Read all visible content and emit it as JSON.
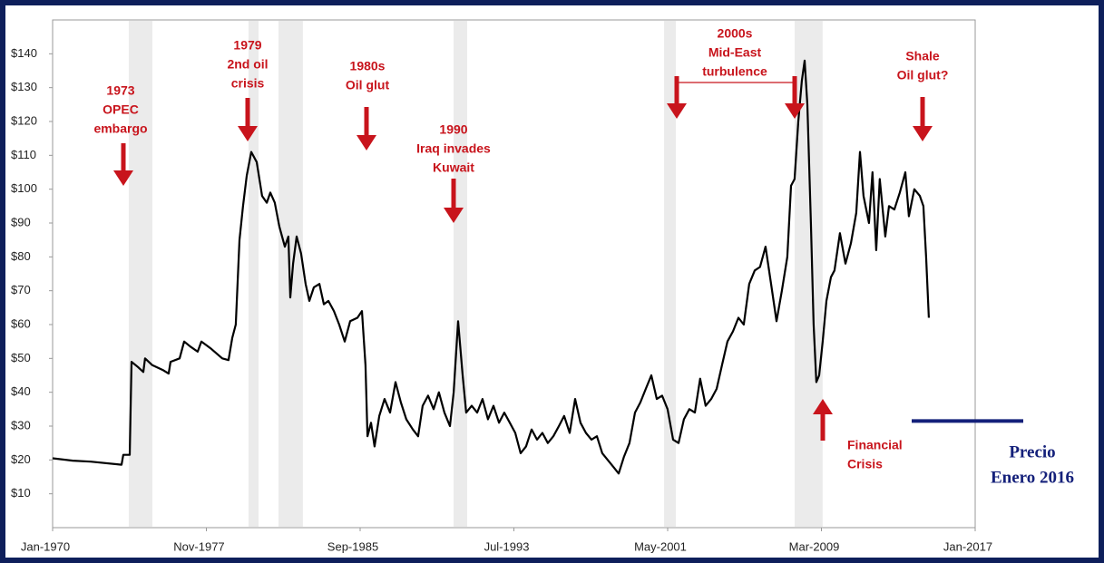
{
  "chart_data": {
    "type": "line",
    "xlim": [
      1970,
      2017
    ],
    "xticks": [
      {
        "value": 1970,
        "label": "Jan-1970"
      },
      {
        "value": 1977.833,
        "label": "Nov-1977"
      },
      {
        "value": 1985.667,
        "label": "Sep-1985"
      },
      {
        "value": 1993.5,
        "label": "Jul-1993"
      },
      {
        "value": 2001.333,
        "label": "May-2001"
      },
      {
        "value": 2009.167,
        "label": "Mar-2009"
      },
      {
        "value": 2017,
        "label": "Jan-2017"
      }
    ],
    "ylim": [
      0,
      150
    ],
    "yticks": [
      {
        "value": 10,
        "label": "$10"
      },
      {
        "value": 20,
        "label": "$20"
      },
      {
        "value": 30,
        "label": "$30"
      },
      {
        "value": 40,
        "label": "$40"
      },
      {
        "value": 50,
        "label": "$50"
      },
      {
        "value": 60,
        "label": "$60"
      },
      {
        "value": 70,
        "label": "$70"
      },
      {
        "value": 80,
        "label": "$80"
      },
      {
        "value": 90,
        "label": "$90"
      },
      {
        "value": 100,
        "label": "$100"
      },
      {
        "value": 110,
        "label": "$110"
      },
      {
        "value": 120,
        "label": "$120"
      },
      {
        "value": 130,
        "label": "$130"
      },
      {
        "value": 140,
        "label": "$140"
      }
    ],
    "grid": false,
    "x": [
      1970.0,
      1971.02,
      1971.94,
      1973.51,
      1973.6,
      1973.93,
      1974.02,
      1974.34,
      1974.62,
      1974.71,
      1975.08,
      1975.64,
      1975.91,
      1976.01,
      1976.47,
      1976.7,
      1977.02,
      1977.39,
      1977.58,
      1978.04,
      1978.64,
      1978.96,
      1979.15,
      1979.33,
      1979.52,
      1979.7,
      1979.89,
      1980.12,
      1980.4,
      1980.67,
      1980.91,
      1981.09,
      1981.32,
      1981.55,
      1981.83,
      1982.01,
      1982.11,
      1982.25,
      1982.43,
      1982.66,
      1982.89,
      1983.08,
      1983.31,
      1983.59,
      1983.82,
      1984.05,
      1984.33,
      1984.6,
      1984.88,
      1985.16,
      1985.53,
      1985.76,
      1985.94,
      1986.04,
      1986.22,
      1986.4,
      1986.64,
      1986.91,
      1987.19,
      1987.47,
      1987.74,
      1988.02,
      1988.35,
      1988.62,
      1988.85,
      1989.13,
      1989.41,
      1989.68,
      1989.96,
      1990.24,
      1990.43,
      1990.66,
      1990.89,
      1991.07,
      1991.35,
      1991.63,
      1991.9,
      1992.18,
      1992.46,
      1992.74,
      1993.01,
      1993.29,
      1993.57,
      1993.84,
      1994.12,
      1994.4,
      1994.68,
      1994.95,
      1995.23,
      1995.51,
      1995.79,
      1996.06,
      1996.34,
      1996.62,
      1996.89,
      1997.17,
      1997.45,
      1997.73,
      1998.0,
      1998.28,
      1998.56,
      1998.84,
      1999.11,
      1999.39,
      1999.67,
      1999.94,
      2000.22,
      2000.5,
      2000.78,
      2001.05,
      2001.33,
      2001.61,
      2001.89,
      2002.16,
      2002.44,
      2002.72,
      2002.99,
      2003.27,
      2003.55,
      2003.83,
      2004.1,
      2004.38,
      2004.66,
      2004.94,
      2005.21,
      2005.49,
      2005.77,
      2006.04,
      2006.32,
      2006.6,
      2006.88,
      2007.15,
      2007.43,
      2007.62,
      2007.8,
      2007.99,
      2008.17,
      2008.31,
      2008.45,
      2008.63,
      2008.77,
      2008.91,
      2009.05,
      2009.23,
      2009.42,
      2009.65,
      2009.83,
      2010.11,
      2010.39,
      2010.67,
      2010.94,
      2011.13,
      2011.31,
      2011.59,
      2011.77,
      2011.96,
      2012.14,
      2012.42,
      2012.61,
      2012.88,
      2013.16,
      2013.44,
      2013.62,
      2013.9,
      2014.18,
      2014.36,
      2014.5,
      2014.64
    ],
    "series": [
      {
        "color": "#000000",
        "values": [
          20.5,
          19.8,
          19.5,
          18.6,
          21.5,
          21.5,
          49,
          47.5,
          46,
          50,
          48,
          46.5,
          45.5,
          49,
          50,
          55,
          53.5,
          52,
          55,
          53,
          50,
          49.5,
          56,
          60,
          85,
          95,
          104,
          111,
          108,
          98,
          96,
          99,
          96,
          89,
          83,
          86,
          68,
          78,
          86,
          81,
          72,
          67,
          71,
          72,
          66,
          67,
          64,
          60,
          55,
          61,
          62,
          64,
          48,
          27,
          31,
          24,
          33,
          38,
          34,
          43,
          37,
          32,
          29,
          27,
          36,
          39,
          35,
          40,
          34,
          30,
          40,
          61,
          45,
          34,
          36,
          34,
          38,
          32,
          36,
          31,
          34,
          31,
          28,
          22,
          24,
          29,
          26,
          28,
          25,
          27,
          30,
          33,
          28,
          38,
          31,
          28,
          26,
          27,
          22,
          20,
          18,
          16,
          21,
          25,
          34,
          37,
          41,
          45,
          38,
          39,
          35,
          26,
          25,
          32,
          35,
          34,
          44,
          36,
          38,
          41,
          48,
          55,
          58,
          62,
          60,
          72,
          76,
          77,
          83,
          72,
          61,
          70,
          80,
          101,
          103,
          120,
          132,
          138,
          125,
          90,
          60,
          43,
          45,
          55,
          67,
          74,
          76,
          87,
          78,
          84,
          93,
          111,
          98,
          90,
          105,
          82,
          103,
          86,
          95,
          94,
          99,
          105,
          92,
          100,
          98,
          95,
          80,
          62
        ]
      }
    ],
    "shaded_periods": [
      [
        1973.88,
        1975.08
      ],
      [
        1979.98,
        1980.49
      ],
      [
        1981.51,
        1982.75
      ],
      [
        1990.43,
        1991.12
      ],
      [
        2001.15,
        2001.75
      ],
      [
        2007.8,
        2009.23
      ]
    ],
    "shade_color": "#ebebeb",
    "annotation_color": "#c8141c",
    "annotations": [
      {
        "lines": [
          "1973",
          "OPEC",
          "embargo"
        ]
      },
      {
        "lines": [
          "1979",
          "2nd oil",
          "crisis"
        ]
      },
      {
        "lines": [
          "1980s",
          "Oil glut"
        ]
      },
      {
        "lines": [
          "1990",
          "Iraq invades",
          "Kuwait"
        ]
      },
      {
        "lines": [
          "2000s",
          "Mid-East",
          "turbulence"
        ]
      },
      {
        "lines": [
          "Shale",
          "Oil glut?"
        ]
      },
      {
        "lines": [
          "Financial",
          "Crisis"
        ]
      }
    ],
    "reference_line": {
      "value": 31.5,
      "color": "#14207a",
      "lines": [
        "Precio",
        "Enero 2016"
      ]
    }
  }
}
